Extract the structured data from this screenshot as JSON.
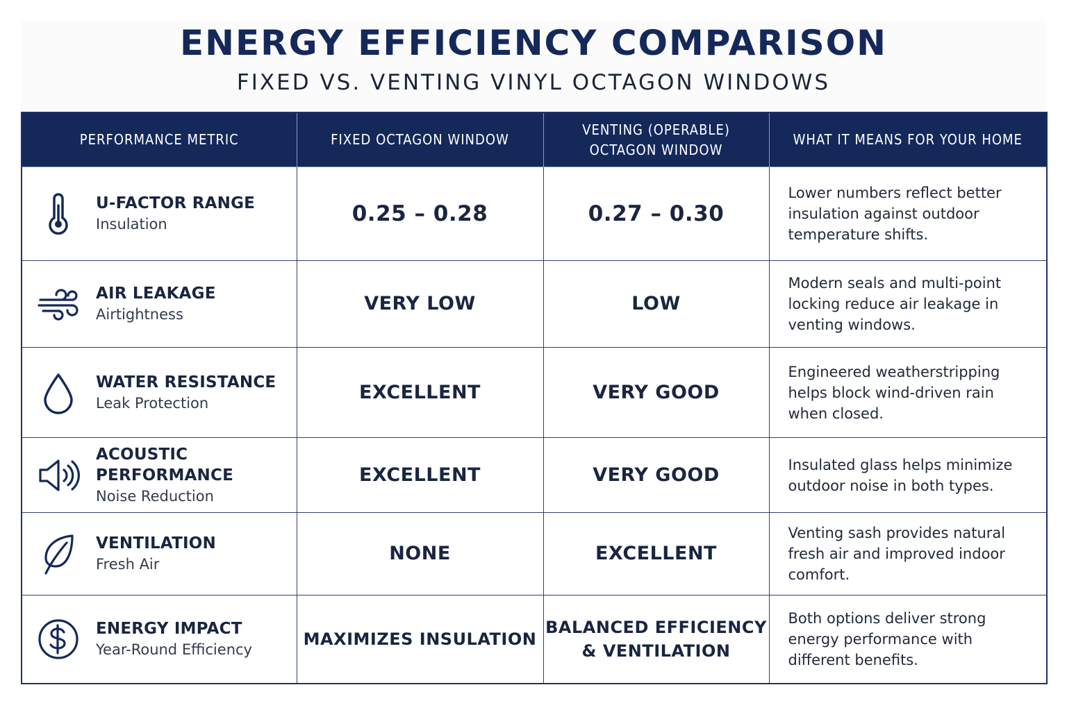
{
  "header": {
    "title": "ENERGY EFFICIENCY COMPARISON",
    "subtitle": "FIXED VS. VENTING VINYL OCTAGON WINDOWS"
  },
  "table": {
    "columns": [
      "PERFORMANCE METRIC",
      "FIXED OCTAGON WINDOW",
      "VENTING (OPERABLE) OCTAGON WINDOW",
      "WHAT IT MEANS FOR YOUR HOME"
    ],
    "column3_lines": [
      "VENTING (OPERABLE)",
      "OCTAGON WINDOW"
    ],
    "rows": [
      {
        "icon": "thermometer-icon",
        "metric": "U-FACTOR RANGE",
        "sub": "Insulation",
        "fixed": "0.25 – 0.28",
        "venting": "0.27 – 0.30",
        "venting_lines": [
          "0.27 – 0.30"
        ],
        "meaning": "Lower numbers reflect better insulation against outdoor temperature shifts."
      },
      {
        "icon": "wind-icon",
        "metric": "AIR LEAKAGE",
        "sub": "Airtightness",
        "fixed": "VERY LOW",
        "venting": "LOW",
        "venting_lines": [
          "LOW"
        ],
        "meaning": "Modern seals and multi-point locking reduce air leakage in venting windows."
      },
      {
        "icon": "water-drop-icon",
        "metric": "WATER RESISTANCE",
        "sub": "Leak Protection",
        "fixed": "EXCELLENT",
        "venting": "VERY GOOD",
        "venting_lines": [
          "VERY GOOD"
        ],
        "meaning": "Engineered weatherstripping helps block wind-driven rain when closed."
      },
      {
        "icon": "speaker-icon",
        "metric": "ACOUSTIC PERFORMANCE",
        "sub": "Noise Reduction",
        "fixed": "EXCELLENT",
        "venting": "VERY GOOD",
        "venting_lines": [
          "VERY GOOD"
        ],
        "meaning": "Insulated glass helps minimize outdoor noise in both types."
      },
      {
        "icon": "leaf-icon",
        "metric": "VENTILATION",
        "sub": "Fresh Air",
        "fixed": "NONE",
        "venting": "EXCELLENT",
        "venting_lines": [
          "EXCELLENT"
        ],
        "meaning": "Venting sash provides natural fresh air and improved indoor comfort."
      },
      {
        "icon": "dollar-icon",
        "metric": "ENERGY IMPACT",
        "sub": "Year-Round Efficiency",
        "fixed": "MAXIMIZES INSULATION",
        "venting": "BALANCED EFFICIENCY & VENTILATION",
        "venting_lines": [
          "BALANCED EFFICIENCY",
          "& VENTILATION"
        ],
        "meaning": "Both options deliver strong energy performance with different benefits."
      }
    ]
  },
  "colors": {
    "navy": "#14295a",
    "border": "#2b3f70",
    "text": "#1a2540"
  }
}
